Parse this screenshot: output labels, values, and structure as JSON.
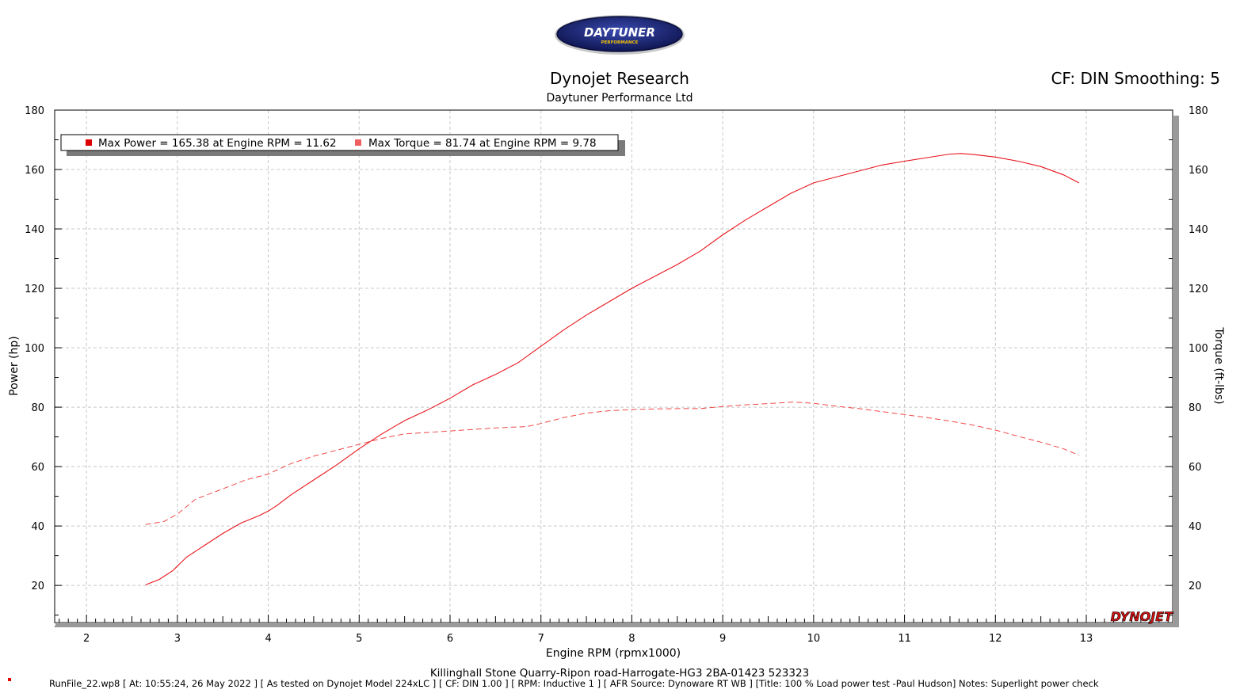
{
  "header": {
    "logo_text": "DAYTUNER",
    "logo_subtext": "PERFORMANCE",
    "title": "Dynojet Research",
    "subtitle": "Daytuner Performance Ltd",
    "cf_info": "CF: DIN Smoothing: 5"
  },
  "legend": {
    "power_entry": "Max Power = 165.38 at Engine RPM = 11.62",
    "torque_entry": "Max Torque = 81.74 at Engine RPM = 9.78"
  },
  "brand_mark": "DYNOJET",
  "footer": {
    "location": "Killinghall Stone Quarry-Ripon road-Harrogate-HG3  2BA-01423  523323",
    "run_info": "RunFile_22.wp8 [ At: 10:55:24, 26 May 2022 ] [ As tested on Dynojet Model 224xLC ] [ CF: DIN 1.00 ] [ RPM: Inductive 1 ] [ AFR Source: Dynoware RT WB ] [Title: 100 % Load power test -Paul Hudson]  Notes: Superlight  power check"
  },
  "colors": {
    "power": "#e8141c",
    "torque": "#f04848",
    "legend_power_marker": "#dd0000",
    "legend_torque_marker": "#f06060",
    "logo_navy": "#14206e",
    "grid": "#c8c8c8"
  },
  "chart_data": {
    "type": "line",
    "xlabel": "Engine RPM (rpmx1000)",
    "ylabel_left": "Power (hp)",
    "ylabel_right": "Torque (ft-lbs)",
    "xlim": [
      1.65,
      13.95
    ],
    "ylim": [
      7.5,
      180
    ],
    "x_ticks": [
      2,
      3,
      4,
      5,
      6,
      7,
      8,
      9,
      10,
      11,
      12,
      13
    ],
    "y_ticks": [
      20,
      40,
      60,
      80,
      100,
      120,
      140,
      160,
      180
    ],
    "grid": true,
    "legend_position": "top-left",
    "series": [
      {
        "name": "Power",
        "axis": "left",
        "style": "solid",
        "x": [
          2.65,
          2.8,
          2.95,
          3.1,
          3.3,
          3.5,
          3.7,
          3.9,
          4.0,
          4.1,
          4.25,
          4.5,
          4.75,
          5.0,
          5.25,
          5.5,
          5.75,
          6.0,
          6.25,
          6.5,
          6.75,
          7.0,
          7.25,
          7.5,
          7.75,
          8.0,
          8.25,
          8.5,
          8.75,
          9.0,
          9.25,
          9.5,
          9.75,
          10.0,
          10.25,
          10.5,
          10.75,
          11.0,
          11.25,
          11.5,
          11.62,
          11.75,
          12.0,
          12.25,
          12.5,
          12.75,
          12.92
        ],
        "y": [
          20.2,
          22.0,
          25.0,
          29.5,
          33.5,
          37.5,
          41.0,
          43.5,
          45.0,
          47.0,
          50.5,
          55.5,
          60.5,
          66.0,
          71.0,
          75.5,
          79.0,
          83.0,
          87.5,
          91.0,
          95.0,
          100.5,
          106.0,
          111.0,
          115.5,
          120.0,
          124.0,
          128.0,
          132.5,
          138.0,
          143.0,
          147.5,
          152.0,
          155.5,
          157.5,
          159.5,
          161.5,
          162.8,
          164.0,
          165.2,
          165.38,
          165.1,
          164.2,
          162.8,
          161.0,
          158.2,
          155.5
        ]
      },
      {
        "name": "Torque",
        "axis": "right",
        "style": "dashed",
        "x": [
          2.65,
          2.85,
          3.0,
          3.2,
          3.5,
          3.75,
          4.0,
          4.25,
          4.5,
          4.75,
          5.0,
          5.25,
          5.5,
          5.75,
          6.0,
          6.25,
          6.5,
          6.85,
          7.0,
          7.25,
          7.5,
          7.75,
          8.0,
          8.25,
          8.5,
          8.75,
          9.0,
          9.25,
          9.5,
          9.78,
          10.0,
          10.25,
          10.5,
          10.75,
          11.0,
          11.25,
          11.5,
          11.75,
          12.0,
          12.25,
          12.5,
          12.75,
          12.92
        ],
        "y": [
          40.5,
          41.5,
          44.0,
          49.0,
          52.5,
          55.5,
          57.5,
          61.0,
          63.5,
          65.5,
          67.5,
          69.5,
          71.0,
          71.5,
          72.0,
          72.5,
          73.0,
          73.5,
          74.5,
          76.5,
          78.0,
          78.8,
          79.2,
          79.4,
          79.5,
          79.5,
          80.2,
          80.8,
          81.2,
          81.74,
          81.3,
          80.3,
          79.5,
          78.5,
          77.5,
          76.5,
          75.3,
          74.0,
          72.3,
          70.2,
          68.2,
          66.0,
          63.8
        ]
      }
    ]
  }
}
